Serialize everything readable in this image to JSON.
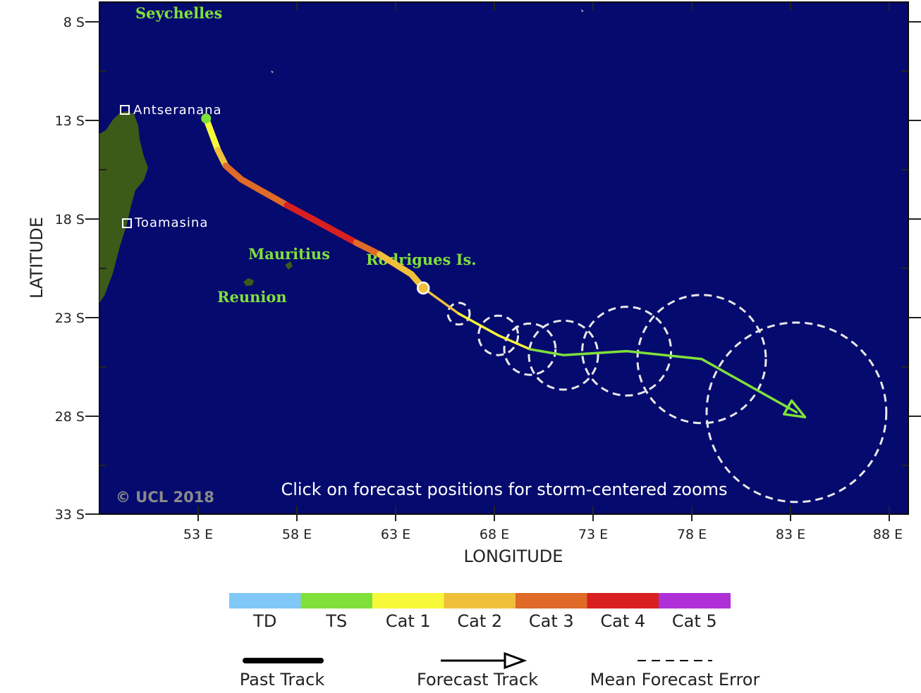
{
  "map": {
    "lon_range": [
      48,
      88
    ],
    "lat_range": [
      -8,
      -33
    ],
    "lon_ticks": [
      "53 E",
      "58 E",
      "63 E",
      "68 E",
      "73 E",
      "78 E",
      "83 E",
      "88 E"
    ],
    "lat_ticks": [
      "8 S",
      "13 S",
      "18 S",
      "23 S",
      "28 S",
      "33 S"
    ],
    "xlabel": "LONGITUDE",
    "ylabel": "LATITUDE",
    "colors": {
      "ocean": "#050a6e",
      "land": "#3c5a18",
      "label": "#7fe03a",
      "frame": "#0a0a0a"
    }
  },
  "labels": {
    "places": [
      "Seychelles",
      "Mauritius",
      "Reunion",
      "Rodrigues Is."
    ],
    "cities": [
      "Antseranana",
      "Toamasina"
    ],
    "copyright": "© UCL 2018",
    "click_note": "Click on forecast positions for storm-centered zooms"
  },
  "track": {
    "past": [
      {
        "lon": 53.4,
        "lat": -12.9,
        "cat": "TS"
      },
      {
        "lon": 54.0,
        "lat": -14.5,
        "cat": "Cat 1"
      },
      {
        "lon": 54.4,
        "lat": -15.3,
        "cat": "Cat 2"
      },
      {
        "lon": 55.2,
        "lat": -16.0,
        "cat": "Cat 3"
      },
      {
        "lon": 57.5,
        "lat": -17.3,
        "cat": "Cat 3"
      },
      {
        "lon": 58.8,
        "lat": -18.0,
        "cat": "Cat 4"
      },
      {
        "lon": 61.0,
        "lat": -19.2,
        "cat": "Cat 4"
      },
      {
        "lon": 62.2,
        "lat": -19.8,
        "cat": "Cat 3"
      },
      {
        "lon": 63.8,
        "lat": -20.8,
        "cat": "Cat 2"
      },
      {
        "lon": 64.4,
        "lat": -21.5,
        "cat": "Cat 2"
      }
    ],
    "forecast": [
      {
        "lon": 64.4,
        "lat": -21.5,
        "cat": "Cat 2",
        "error_deg": 0.3
      },
      {
        "lon": 66.2,
        "lat": -22.8,
        "cat": "Cat 2",
        "error_deg": 0.55
      },
      {
        "lon": 68.2,
        "lat": -23.9,
        "cat": "Cat 1",
        "error_deg": 1.0
      },
      {
        "lon": 69.8,
        "lat": -24.6,
        "cat": "Cat 1",
        "error_deg": 1.3
      },
      {
        "lon": 71.5,
        "lat": -24.9,
        "cat": "TS",
        "error_deg": 1.75
      },
      {
        "lon": 74.7,
        "lat": -24.7,
        "cat": "TS",
        "error_deg": 2.25
      },
      {
        "lon": 78.5,
        "lat": -25.1,
        "cat": "TS",
        "error_deg": 3.25
      },
      {
        "lon": 83.3,
        "lat": -27.8,
        "cat": "TS",
        "error_deg": 4.55
      }
    ]
  },
  "legend": {
    "categories": [
      {
        "label": "TD",
        "color": "#7fc8f8"
      },
      {
        "label": "TS",
        "color": "#7fe03a"
      },
      {
        "label": "Cat 1",
        "color": "#f8f83a"
      },
      {
        "label": "Cat 2",
        "color": "#f0c03a"
      },
      {
        "label": "Cat 3",
        "color": "#e06a28"
      },
      {
        "label": "Cat 4",
        "color": "#d82020"
      },
      {
        "label": "Cat 5",
        "color": "#b030d8"
      }
    ],
    "past_track": "Past Track",
    "forecast_track": "Forecast Track",
    "mean_error": "Mean Forecast Error"
  }
}
